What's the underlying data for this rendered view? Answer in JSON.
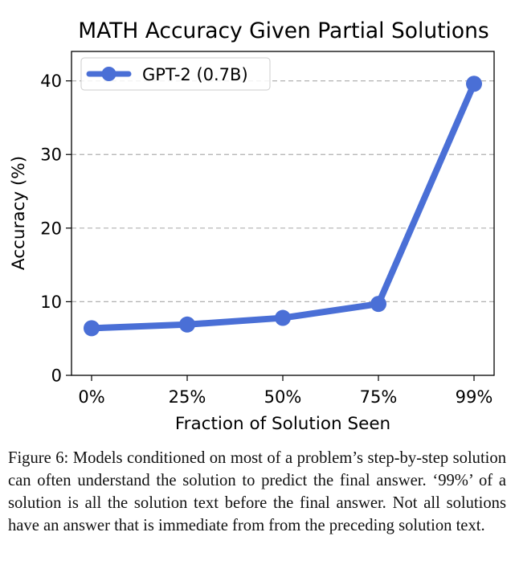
{
  "chart_data": {
    "type": "line",
    "title": "MATH Accuracy Given Partial Solutions",
    "xlabel": "Fraction of Solution Seen",
    "ylabel": "Accuracy (%)",
    "categories": [
      "0%",
      "25%",
      "50%",
      "75%",
      "99%"
    ],
    "series": [
      {
        "name": "GPT-2 (0.7B)",
        "values": [
          6.4,
          6.9,
          7.8,
          9.7,
          39.6
        ],
        "color": "#4a6fd6"
      }
    ],
    "ylim": [
      0,
      44
    ],
    "yticks": [
      0,
      10,
      20,
      30,
      40
    ],
    "grid": "y-dashed",
    "legend": "top-left"
  },
  "caption": "Figure 6: Models conditioned on most of a problem’s step-by-step solution can often understand the solution to predict the final answer. ‘99%’ of a solution is all the solution text before the final answer. Not all solutions have an answer that is immediate from from the preceding solution text."
}
